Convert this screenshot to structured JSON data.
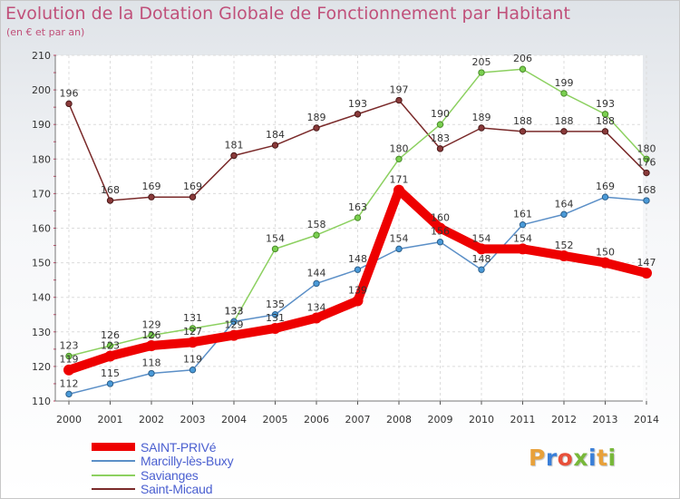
{
  "header": {
    "title": "Evolution de la Dotation Globale de Fonctionnement par Habitant",
    "subtitle": "(en € et par an)"
  },
  "logo": {
    "text": "Proxiti",
    "letter_colors": [
      "#e8a13a",
      "#3a7fd8",
      "#e8503a",
      "#78b83a",
      "#3a7fd8",
      "#e8a13a",
      "#78b83a"
    ]
  },
  "chart_data": {
    "type": "line",
    "title": "Evolution de la Dotation Globale de Fonctionnement par Habitant",
    "subtitle": "(en € et par an)",
    "x": [
      "2000",
      "2001",
      "2002",
      "2003",
      "2004",
      "2005",
      "2006",
      "2007",
      "2008",
      "2009",
      "2010",
      "2011",
      "2012",
      "2013",
      "2014"
    ],
    "ylim": [
      110,
      210
    ],
    "yticks": [
      110,
      120,
      130,
      140,
      150,
      160,
      170,
      180,
      190,
      200,
      210
    ],
    "grid": true,
    "legend_position": "bottom-left",
    "series": [
      {
        "name": "SAINT-PRIVé",
        "color": "#ee0000",
        "values": [
          119,
          123,
          126,
          127,
          129,
          131,
          134,
          139,
          171,
          160,
          154,
          154,
          152,
          150,
          147
        ]
      },
      {
        "name": "Marcilly-lès-Buxy",
        "color": "#5b8fc7",
        "values": [
          112,
          115,
          118,
          119,
          133,
          135,
          144,
          148,
          154,
          156,
          148,
          161,
          164,
          169,
          168
        ]
      },
      {
        "name": "Savianges",
        "color": "#8cd060",
        "values": [
          123,
          126,
          129,
          131,
          133,
          154,
          158,
          163,
          180,
          190,
          205,
          206,
          199,
          193,
          180
        ]
      },
      {
        "name": "Saint-Micaud",
        "color": "#7a2a2a",
        "values": [
          196,
          168,
          169,
          169,
          181,
          184,
          189,
          193,
          197,
          183,
          189,
          188,
          188,
          188,
          176
        ]
      }
    ]
  }
}
